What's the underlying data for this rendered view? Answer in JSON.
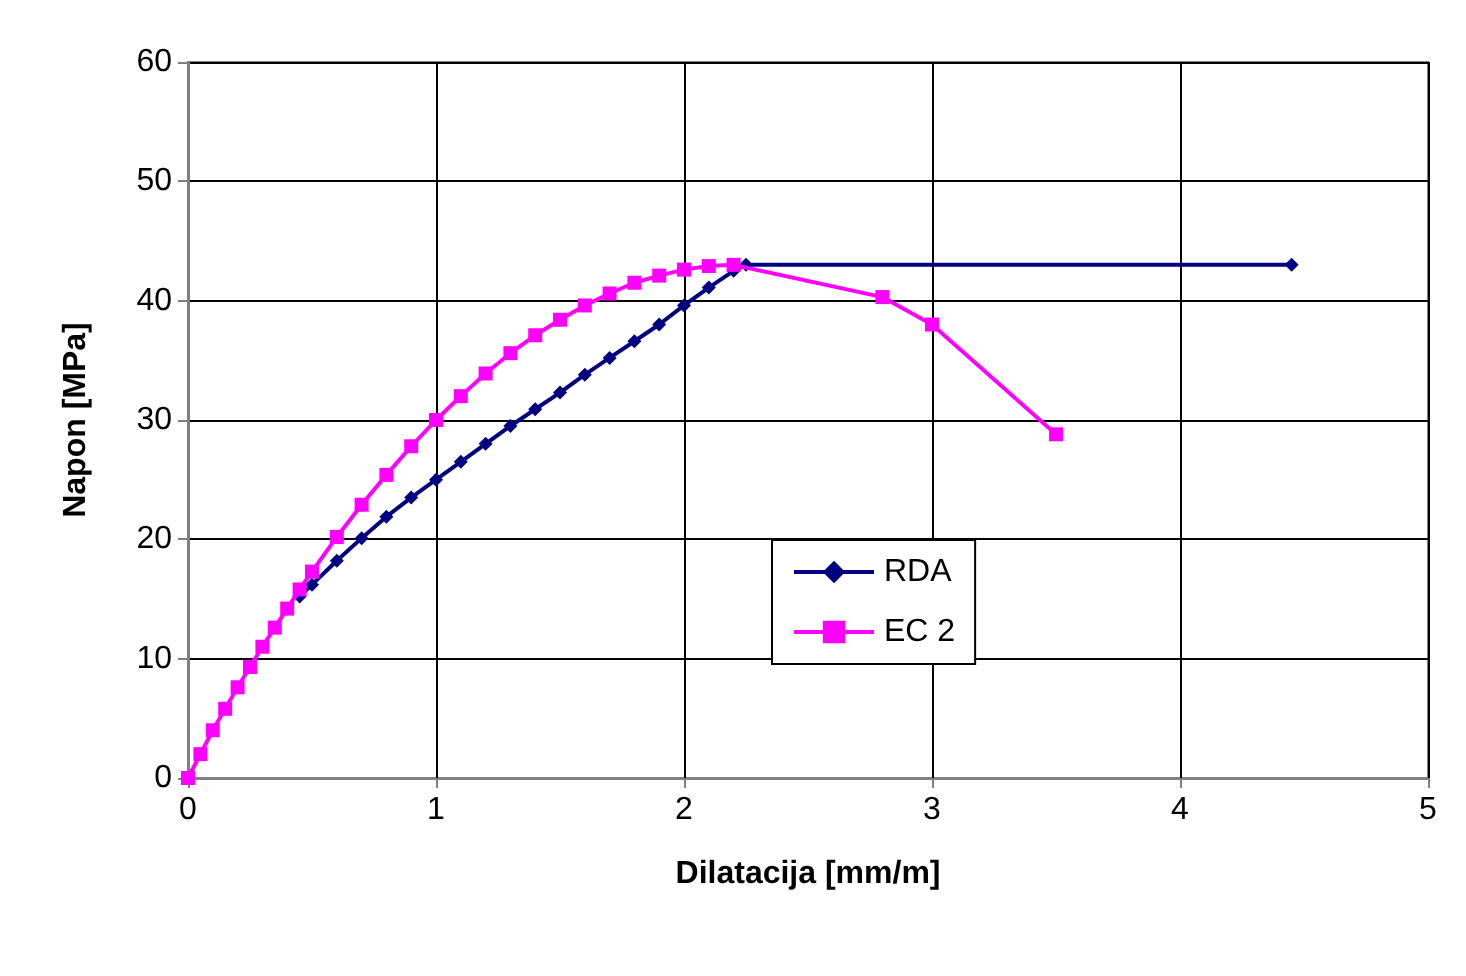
{
  "chart_data": {
    "type": "line",
    "xlabel": "Dilatacija [mm/m]",
    "ylabel": "Napon [MPa]",
    "xlim": [
      0,
      5
    ],
    "xticks": [
      0,
      1,
      2,
      3,
      4,
      5
    ],
    "ylim": [
      0,
      60
    ],
    "yticks": [
      0,
      10,
      20,
      30,
      40,
      50,
      60
    ],
    "grid": true,
    "legend": "center",
    "series": [
      {
        "name": "RDA",
        "color": "#000080",
        "marker": "diamond",
        "x": [
          0.45,
          0.5,
          0.6,
          0.7,
          0.8,
          0.9,
          1.0,
          1.1,
          1.2,
          1.3,
          1.4,
          1.5,
          1.6,
          1.7,
          1.8,
          1.9,
          2.0,
          2.1,
          2.2,
          2.25,
          4.45
        ],
        "values": [
          15.2,
          16.2,
          18.2,
          20.1,
          21.9,
          23.5,
          25,
          26.5,
          28,
          29.5,
          30.9,
          32.3,
          33.8,
          35.2,
          36.6,
          38,
          39.6,
          41.1,
          42.5,
          43,
          43
        ]
      },
      {
        "name": "EC 2",
        "color": "#ff00ff",
        "marker": "square",
        "x": [
          0,
          0.05,
          0.1,
          0.15,
          0.2,
          0.25,
          0.3,
          0.35,
          0.4,
          0.45,
          0.5,
          0.6,
          0.7,
          0.8,
          0.9,
          1.0,
          1.1,
          1.2,
          1.3,
          1.4,
          1.5,
          1.6,
          1.7,
          1.8,
          1.9,
          2.0,
          2.1,
          2.2,
          2.8,
          3.0,
          3.5
        ],
        "values": [
          0,
          2,
          4,
          5.8,
          7.6,
          9.3,
          11,
          12.6,
          14.2,
          15.8,
          17.3,
          20.2,
          22.9,
          25.4,
          27.8,
          30,
          32,
          33.9,
          35.6,
          37.1,
          38.4,
          39.6,
          40.6,
          41.5,
          42.1,
          42.6,
          42.9,
          43,
          40.3,
          38,
          28.8
        ]
      }
    ]
  }
}
